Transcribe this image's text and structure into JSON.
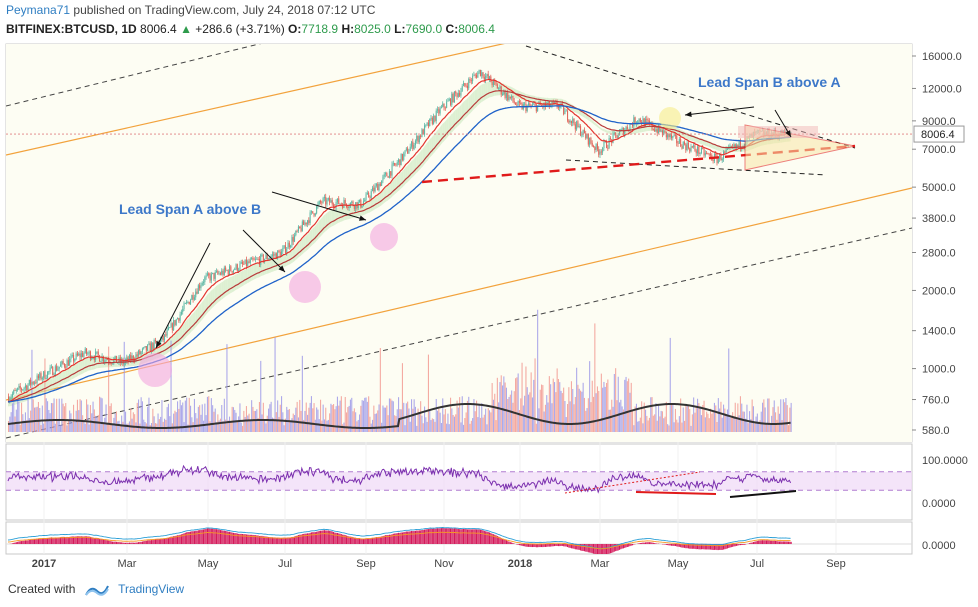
{
  "header": {
    "author": "Peymana71",
    "published": "published on TradingView.com, July 24, 2018 07:12 UTC",
    "symbol": "BITFINEX:BTCUSD, 1D",
    "last": "8006.4",
    "change": "+286.6 (+3.71%)",
    "o_label": "O:",
    "o": "7718.9",
    "h_label": "H:",
    "h": "8025.0",
    "l_label": "L:",
    "l": "7690.0",
    "c_label": "C:",
    "c": "8006.4"
  },
  "footer": {
    "created": "Created with",
    "brand": "TradingView"
  },
  "colors": {
    "up": "#5fb8a6",
    "down": "#e2665b",
    "ema_fast": "#e3342f",
    "ema_slow": "#1f62c9",
    "ma_vol": "#333333",
    "orange": "#f2a23c",
    "rsi": "#7b2fae",
    "annot_blue": "#3d78c9",
    "cloud_green": "#cdeac0",
    "cloud_red": "#f6c3c3",
    "macd_hist": "#d41a5b"
  },
  "chart_data": {
    "type": "line",
    "panes": [
      "price",
      "rsi",
      "macd"
    ],
    "x_ticks": [
      "2017",
      "Mar",
      "May",
      "Jul",
      "Sep",
      "Nov",
      "2018",
      "Mar",
      "May",
      "Jul",
      "Sep"
    ],
    "price_axis": {
      "scale": "log",
      "ticks": [
        "16000.0",
        "12000.0",
        "9000.0",
        "7000.0",
        "5000.0",
        "3800.0",
        "2800.0",
        "2000.0",
        "1400.0",
        "1000.0",
        "760.0",
        "580.0"
      ],
      "current": "8006.4"
    },
    "rsi_axis": {
      "ticks": [
        "100.0000",
        "0.0000"
      ]
    },
    "macd_axis": {
      "ticks": [
        "0.0000"
      ]
    },
    "annotations": [
      "Lead Span A above B",
      "Lead Span B above A"
    ],
    "price_series": {
      "name": "BTCUSD close (approx.)",
      "x": [
        "2017-01",
        "2017-02",
        "2017-03",
        "2017-04",
        "2017-05",
        "2017-06",
        "2017-07",
        "2017-08",
        "2017-09",
        "2017-10",
        "2017-11",
        "2017-12",
        "2018-01",
        "2018-02",
        "2018-03",
        "2018-04",
        "2018-05",
        "2018-06",
        "2018-07"
      ],
      "values": [
        950,
        1150,
        1050,
        1300,
        2200,
        2500,
        2800,
        4400,
        4300,
        6400,
        9900,
        14000,
        10200,
        10300,
        6900,
        9200,
        7500,
        6400,
        8006
      ]
    }
  }
}
